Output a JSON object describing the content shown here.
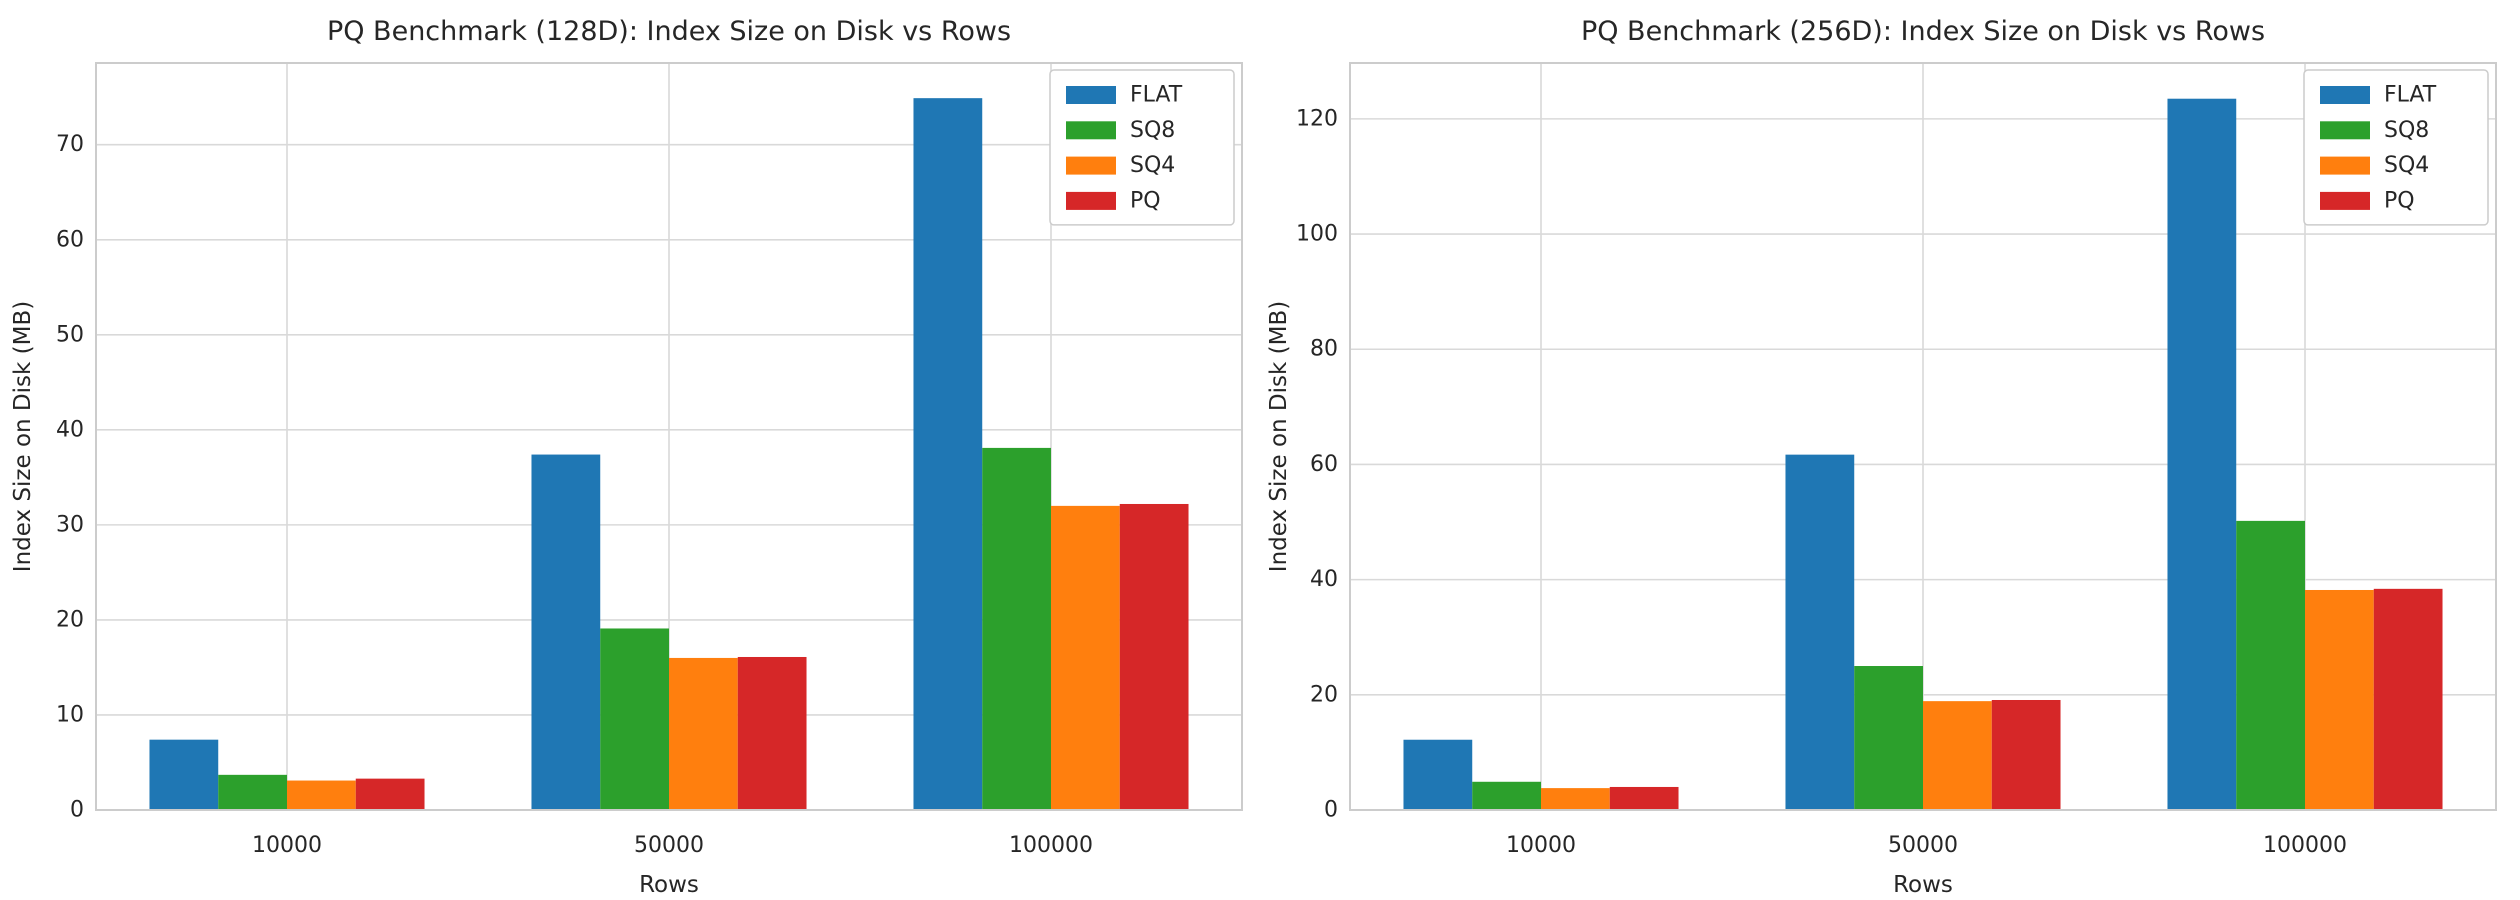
{
  "figure": {
    "background": "#ffffff",
    "grid_color": "#d9d9d9",
    "spine_color": "#cccccc",
    "text_color": "#262626"
  },
  "chart_data": [
    {
      "type": "bar",
      "title": "PQ Benchmark (128D): Index Size on Disk vs Rows",
      "xlabel": "Rows",
      "ylabel": "Index Size on Disk (MB)",
      "categories": [
        "10000",
        "50000",
        "100000"
      ],
      "series": [
        {
          "name": "FLAT",
          "color": "#1f77b4",
          "values": [
            7.4,
            37.4,
            74.9
          ]
        },
        {
          "name": "SQ8",
          "color": "#2ca02c",
          "values": [
            3.7,
            19.1,
            38.1
          ]
        },
        {
          "name": "SQ4",
          "color": "#ff7f0e",
          "values": [
            3.1,
            16.0,
            32.0
          ]
        },
        {
          "name": "PQ",
          "color": "#d62728",
          "values": [
            3.3,
            16.1,
            32.2
          ]
        }
      ],
      "ylim": [
        0,
        78.6
      ],
      "ytick_step": 10,
      "grid": true,
      "legend_position": "upper right"
    },
    {
      "type": "bar",
      "title": "PQ Benchmark (256D): Index Size on Disk vs Rows",
      "xlabel": "Rows",
      "ylabel": "Index Size on Disk (MB)",
      "categories": [
        "10000",
        "50000",
        "100000"
      ],
      "series": [
        {
          "name": "FLAT",
          "color": "#1f77b4",
          "values": [
            12.2,
            61.7,
            123.5
          ]
        },
        {
          "name": "SQ8",
          "color": "#2ca02c",
          "values": [
            4.9,
            25.0,
            50.2
          ]
        },
        {
          "name": "SQ4",
          "color": "#ff7f0e",
          "values": [
            3.8,
            18.9,
            38.2
          ]
        },
        {
          "name": "PQ",
          "color": "#d62728",
          "values": [
            4.0,
            19.1,
            38.4
          ]
        }
      ],
      "ylim": [
        0,
        129.7
      ],
      "ytick_step": 20,
      "grid": true,
      "legend_position": "upper right"
    }
  ]
}
